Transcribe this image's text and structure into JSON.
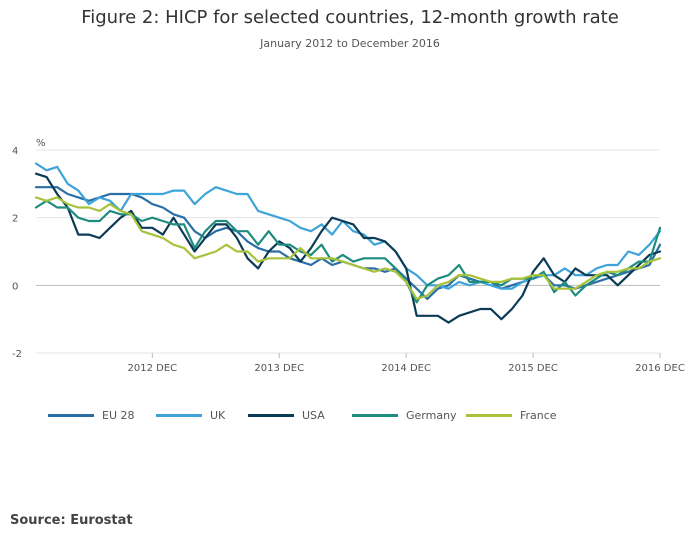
{
  "title": "Figure 2: HICP for selected countries, 12-month growth rate",
  "subtitle": "January 2012 to December 2016",
  "source": "Source: Eurostat",
  "chart_data": {
    "type": "line",
    "title": "Figure 2: HICP for selected countries, 12-month growth rate",
    "subtitle": "January 2012 to December 2016",
    "ylabel": "%",
    "xlabel": "",
    "ylim": [
      -2,
      4
    ],
    "yticks": [
      4,
      2,
      0,
      -2
    ],
    "xlim": [
      0,
      59
    ],
    "xticks": [
      {
        "index": 11,
        "label": "2012 DEC"
      },
      {
        "index": 23,
        "label": "2013 DEC"
      },
      {
        "index": 35,
        "label": "2014 DEC"
      },
      {
        "index": 47,
        "label": "2015 DEC"
      },
      {
        "index": 59,
        "label": "2016 DEC"
      }
    ],
    "x_start": "2012-01",
    "x_end": "2016-12",
    "series": [
      {
        "name": "EU 28",
        "color": "#2a6ea6",
        "values": [
          2.9,
          2.9,
          2.9,
          2.7,
          2.6,
          2.5,
          2.6,
          2.7,
          2.7,
          2.7,
          2.6,
          2.4,
          2.3,
          2.1,
          2.0,
          1.6,
          1.4,
          1.6,
          1.7,
          1.6,
          1.3,
          1.1,
          1.0,
          1.0,
          0.8,
          0.7,
          0.6,
          0.8,
          0.6,
          0.7,
          0.6,
          0.5,
          0.5,
          0.4,
          0.5,
          0.2,
          -0.1,
          -0.4,
          -0.1,
          0.0,
          0.3,
          0.2,
          0.1,
          0.1,
          -0.1,
          0.0,
          0.1,
          0.2,
          0.3,
          0.0,
          0.0,
          -0.1,
          0.0,
          0.1,
          0.2,
          0.3,
          0.4,
          0.5,
          0.6,
          1.2
        ]
      },
      {
        "name": "UK",
        "color": "#3da3d8",
        "values": [
          3.6,
          3.4,
          3.5,
          3.0,
          2.8,
          2.4,
          2.6,
          2.5,
          2.2,
          2.7,
          2.7,
          2.7,
          2.7,
          2.8,
          2.8,
          2.4,
          2.7,
          2.9,
          2.8,
          2.7,
          2.7,
          2.2,
          2.1,
          2.0,
          1.9,
          1.7,
          1.6,
          1.8,
          1.5,
          1.9,
          1.6,
          1.5,
          1.2,
          1.3,
          1.0,
          0.5,
          0.3,
          0.0,
          0.0,
          -0.1,
          0.1,
          0.0,
          0.1,
          0.0,
          -0.1,
          -0.1,
          0.1,
          0.2,
          0.3,
          0.3,
          0.5,
          0.3,
          0.3,
          0.5,
          0.6,
          0.6,
          1.0,
          0.9,
          1.2,
          1.6
        ]
      },
      {
        "name": "USA",
        "color": "#0c3b55",
        "values": [
          3.3,
          3.2,
          2.7,
          2.3,
          1.5,
          1.5,
          1.4,
          1.7,
          2.0,
          2.2,
          1.7,
          1.7,
          1.5,
          2.0,
          1.5,
          1.0,
          1.4,
          1.8,
          1.8,
          1.4,
          0.8,
          0.5,
          1.0,
          1.3,
          1.1,
          0.7,
          1.1,
          1.6,
          2.0,
          1.9,
          1.8,
          1.4,
          1.4,
          1.3,
          1.0,
          0.5,
          -0.9,
          -0.9,
          -0.9,
          -1.1,
          -0.9,
          -0.8,
          -0.7,
          -0.7,
          -1.0,
          -0.7,
          -0.3,
          0.4,
          0.8,
          0.3,
          0.1,
          0.5,
          0.3,
          0.3,
          0.3,
          0.0,
          0.3,
          0.6,
          0.9,
          1.0
        ]
      },
      {
        "name": "Germany",
        "color": "#1e8c7e",
        "values": [
          2.3,
          2.5,
          2.3,
          2.3,
          2.0,
          1.9,
          1.9,
          2.2,
          2.1,
          2.1,
          1.9,
          2.0,
          1.9,
          1.8,
          1.8,
          1.1,
          1.6,
          1.9,
          1.9,
          1.6,
          1.6,
          1.2,
          1.6,
          1.2,
          1.2,
          1.0,
          0.9,
          1.2,
          0.7,
          0.9,
          0.7,
          0.8,
          0.8,
          0.8,
          0.5,
          0.1,
          -0.5,
          0.0,
          0.2,
          0.3,
          0.6,
          0.1,
          0.1,
          0.1,
          0.0,
          0.2,
          0.2,
          0.2,
          0.4,
          -0.2,
          0.1,
          -0.3,
          0.0,
          0.2,
          0.4,
          0.3,
          0.5,
          0.7,
          0.7,
          1.7
        ]
      },
      {
        "name": "France",
        "color": "#a8c23a",
        "values": [
          2.6,
          2.5,
          2.6,
          2.4,
          2.3,
          2.3,
          2.2,
          2.4,
          2.2,
          2.1,
          1.6,
          1.5,
          1.4,
          1.2,
          1.1,
          0.8,
          0.9,
          1.0,
          1.2,
          1.0,
          1.0,
          0.7,
          0.8,
          0.8,
          0.8,
          1.1,
          0.8,
          0.8,
          0.8,
          0.7,
          0.6,
          0.5,
          0.4,
          0.5,
          0.4,
          0.1,
          -0.4,
          -0.3,
          0.0,
          0.1,
          0.3,
          0.3,
          0.2,
          0.1,
          0.1,
          0.2,
          0.2,
          0.3,
          0.3,
          -0.1,
          -0.1,
          -0.1,
          0.1,
          0.3,
          0.4,
          0.4,
          0.5,
          0.5,
          0.7,
          0.8
        ]
      }
    ]
  }
}
